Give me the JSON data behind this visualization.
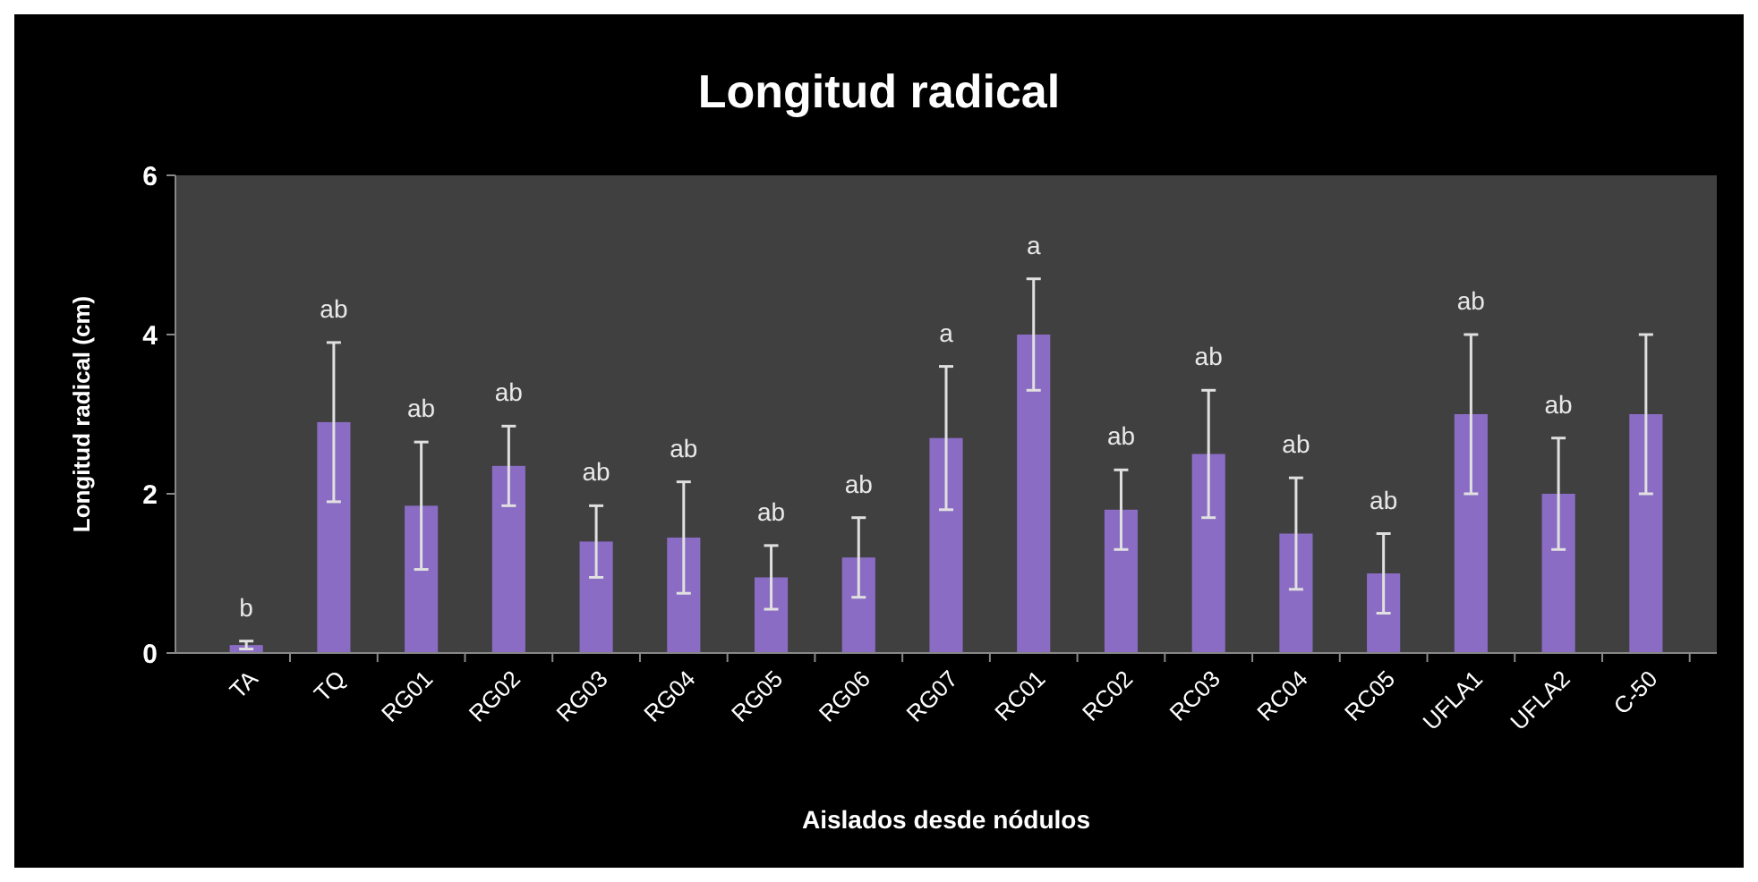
{
  "chart_data": {
    "type": "bar",
    "title": "Longitud radical",
    "xlabel": "Aislados desde nódulos",
    "ylabel": "Longitud radical (cm)",
    "categories": [
      "TA",
      "TQ",
      "RG01",
      "RG02",
      "RG03",
      "RG04",
      "RG05",
      "RG06",
      "RG07",
      "RC01",
      "RC02",
      "RC03",
      "RC04",
      "RC05",
      "UFLA1",
      "UFLA2",
      "C-50"
    ],
    "values": [
      0.1,
      2.9,
      1.85,
      2.35,
      1.4,
      1.45,
      0.95,
      1.2,
      2.7,
      4.0,
      1.8,
      2.5,
      1.5,
      1.0,
      3.0,
      2.0,
      3.0
    ],
    "errors": [
      0.05,
      1.0,
      0.8,
      0.5,
      0.45,
      0.7,
      0.4,
      0.5,
      0.9,
      0.7,
      0.5,
      0.8,
      0.7,
      0.5,
      1.0,
      0.7,
      1.0
    ],
    "color": "#8a6cc4",
    "ylim": [
      0,
      6
    ],
    "yticks": [
      0,
      2,
      4,
      6
    ],
    "grid": false,
    "annotations": [
      {
        "text": "b",
        "x": "TA",
        "y": 0.15
      },
      {
        "text": "ab",
        "x": "TQ",
        "y": 3.9
      },
      {
        "text": "ab",
        "x": "RG01",
        "y": 2.65
      },
      {
        "text": "ab",
        "x": "RG02",
        "y": 2.85
      },
      {
        "text": "ab",
        "x": "RG03",
        "y": 1.85
      },
      {
        "text": "ab",
        "x": "RG04",
        "y": 2.15
      },
      {
        "text": "ab",
        "x": "RG05",
        "y": 1.35
      },
      {
        "text": "ab",
        "x": "RG06",
        "y": 1.7
      },
      {
        "text": "a",
        "x": "RG07",
        "y": 3.6
      },
      {
        "text": "a",
        "x": "RC01",
        "y": 4.7
      },
      {
        "text": "ab",
        "x": "RC02",
        "y": 2.3
      },
      {
        "text": "ab",
        "x": "RC03",
        "y": 3.3
      },
      {
        "text": "ab",
        "x": "RC04",
        "y": 2.2
      },
      {
        "text": "ab",
        "x": "RC05",
        "y": 1.5
      },
      {
        "text": "ab",
        "x": "UFLA1",
        "y": 4.0
      },
      {
        "text": "ab",
        "x": "UFLA2",
        "y": 2.7
      }
    ]
  }
}
